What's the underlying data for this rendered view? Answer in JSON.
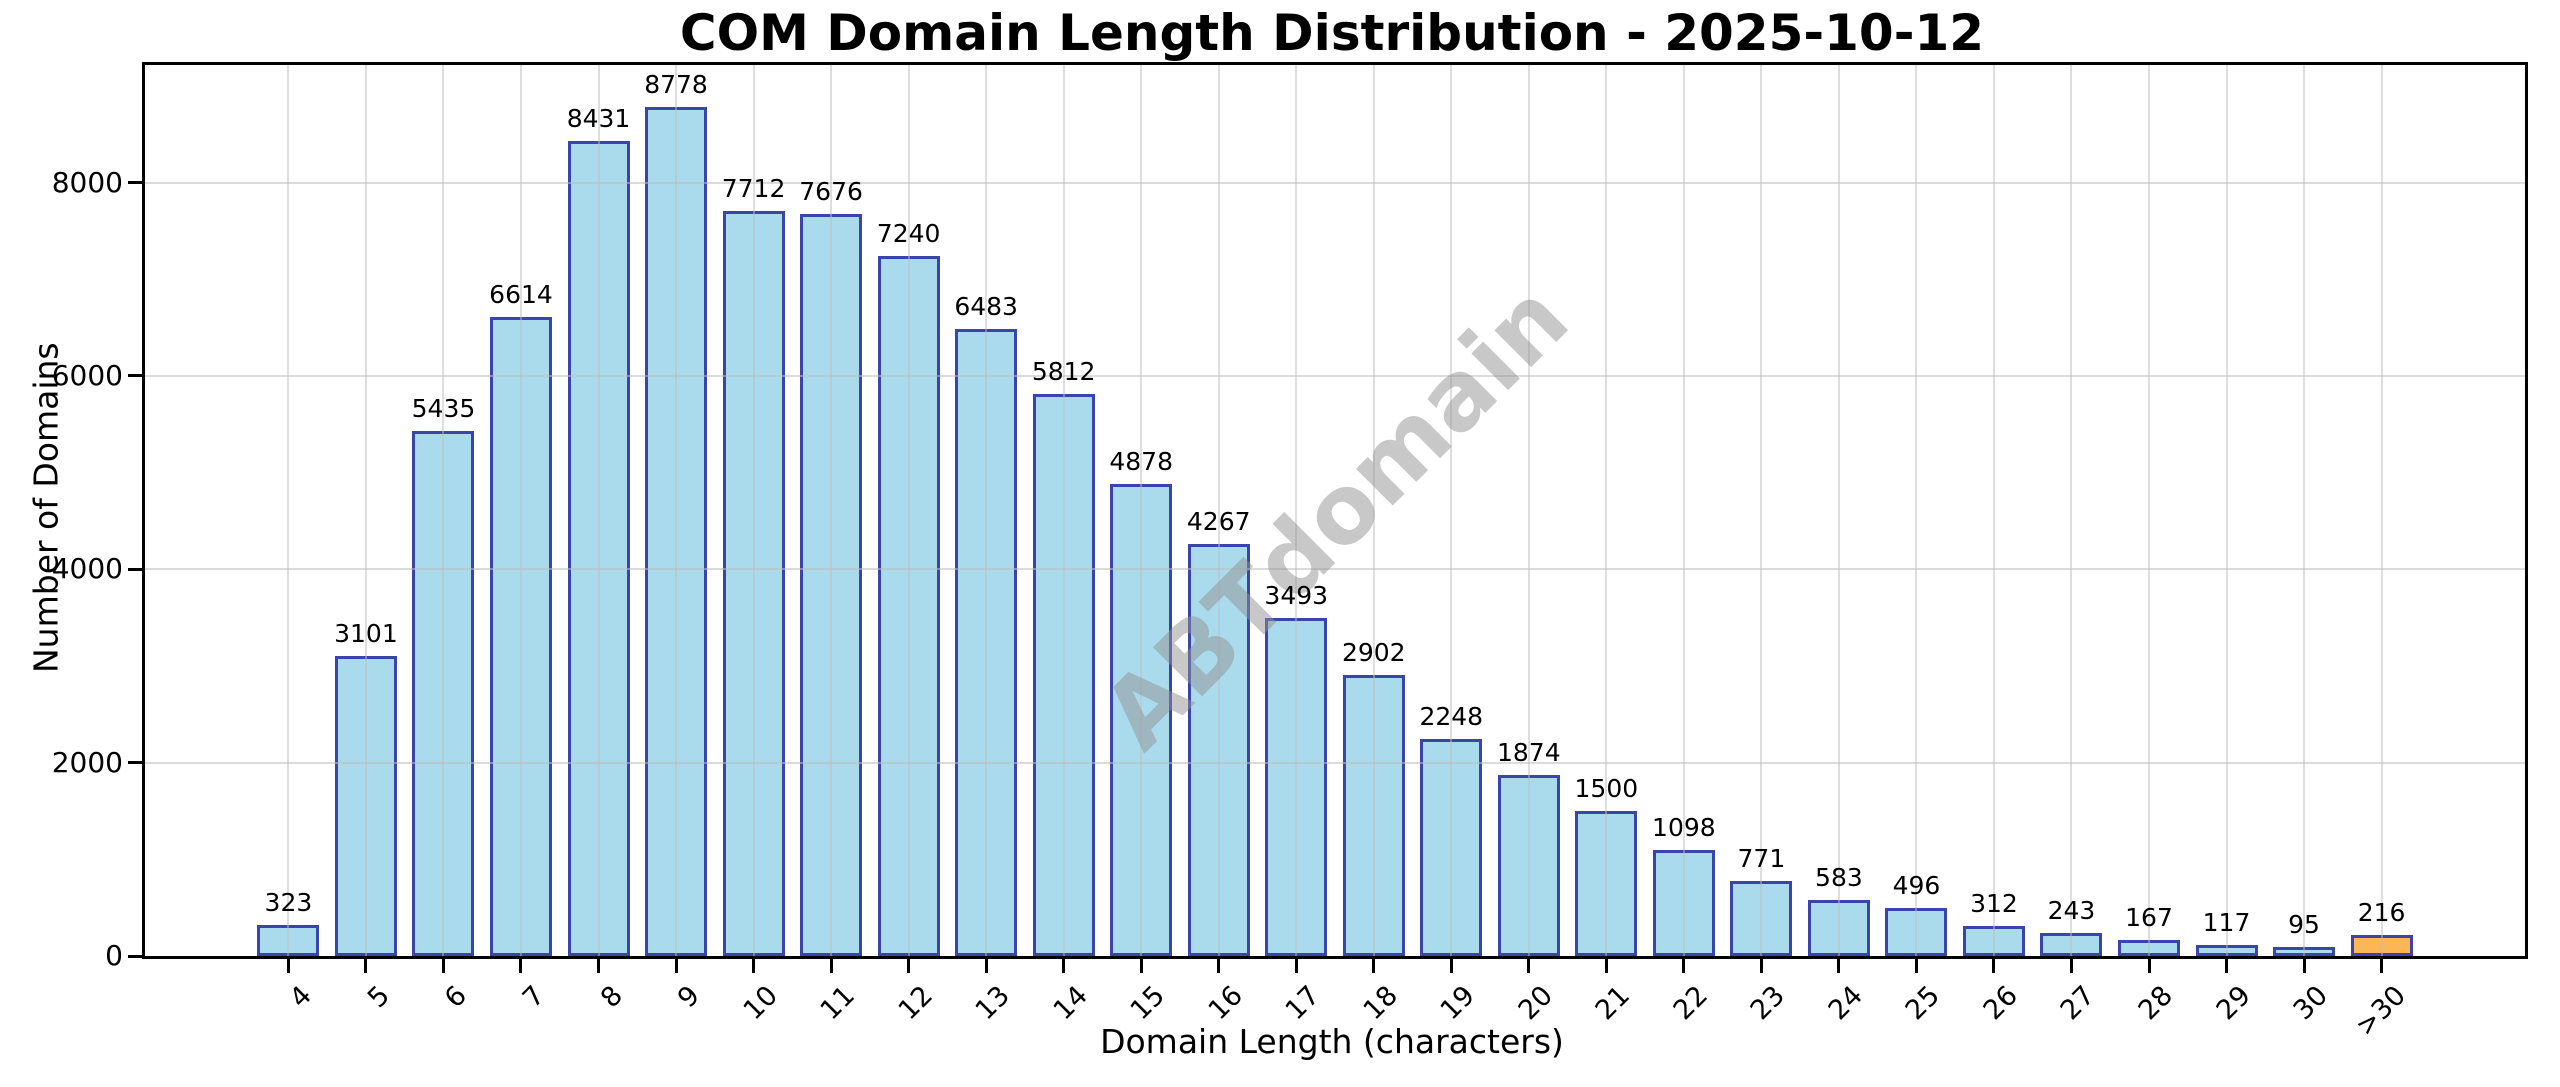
{
  "title": "COM Domain Length Distribution - 2025-10-12",
  "watermark": "ABTdomain",
  "chart_data": {
    "type": "bar",
    "title": "COM Domain Length Distribution - 2025-10-12",
    "xlabel": "Domain Length (characters)",
    "ylabel": "Number of Domains",
    "categories": [
      "4",
      "5",
      "6",
      "7",
      "8",
      "9",
      "10",
      "11",
      "12",
      "13",
      "14",
      "15",
      "16",
      "17",
      "18",
      "19",
      "20",
      "21",
      "22",
      "23",
      "24",
      "25",
      "26",
      "27",
      "28",
      "29",
      "30",
      ">30"
    ],
    "values": [
      323,
      3101,
      5435,
      6614,
      8431,
      8778,
      7712,
      7676,
      7240,
      6483,
      5812,
      4878,
      4267,
      3493,
      2902,
      2248,
      1874,
      1500,
      1098,
      771,
      583,
      496,
      312,
      243,
      167,
      117,
      95,
      216
    ],
    "yticks": [
      0,
      2000,
      4000,
      6000,
      8000
    ],
    "ylim": [
      0,
      9217
    ],
    "grid": true,
    "legend": null,
    "bar_color": "#A9DBEC",
    "bar_edge_color": "#3A45AC",
    "highlight_index": 27,
    "highlight_color": "#FBB755",
    "watermark_text": "ABTdomain"
  }
}
